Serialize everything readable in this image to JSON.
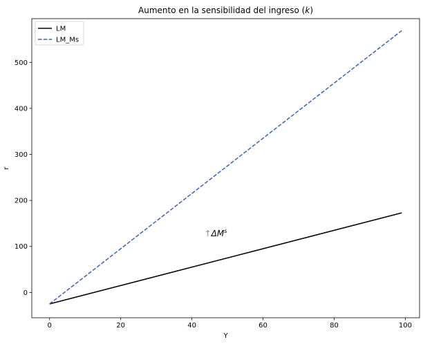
{
  "chart_data": {
    "type": "line",
    "title": "Aumento en la sensibilidad del ingreso (k)",
    "title_prefix": "Aumento en la sensibilidad del ingreso (",
    "title_var": "k",
    "title_suffix": ")",
    "xlabel": "Y",
    "ylabel": "r",
    "xlim": [
      -5,
      104
    ],
    "ylim": [
      -55,
      595
    ],
    "xticks": [
      0,
      20,
      40,
      60,
      80,
      100
    ],
    "yticks": [
      0,
      100,
      200,
      300,
      400,
      500
    ],
    "grid": false,
    "legend_position": "top-left",
    "series": [
      {
        "name": "LM",
        "style": "solid",
        "color": "#000000",
        "x": [
          0,
          99
        ],
        "y": [
          -25,
          173
        ]
      },
      {
        "name": "LM_Ms",
        "style": "dashed",
        "color": "#3a62b7",
        "x": [
          0,
          99
        ],
        "y": [
          -25,
          569
        ]
      }
    ],
    "annotations": [
      {
        "arrow": "↑",
        "main": "ΔM",
        "sup": "s",
        "x": 43.5,
        "y": 130
      }
    ]
  }
}
